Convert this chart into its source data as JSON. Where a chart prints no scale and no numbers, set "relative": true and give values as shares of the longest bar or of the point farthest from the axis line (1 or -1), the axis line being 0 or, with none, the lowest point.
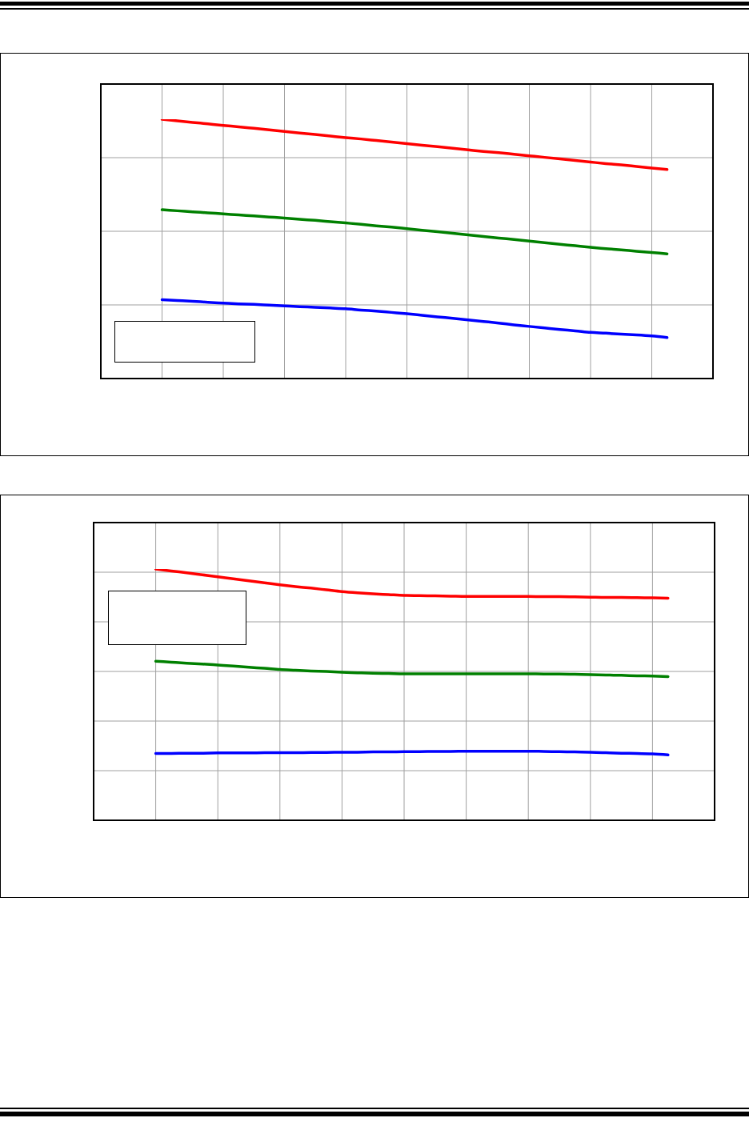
{
  "chart_data": [
    {
      "type": "line",
      "relative": true,
      "grid": true,
      "categories": [
        null,
        null,
        null,
        null,
        null,
        null,
        null,
        null,
        null,
        null,
        null,
        null,
        null,
        null,
        null,
        null,
        null,
        null,
        null,
        null,
        null,
        null,
        null,
        null,
        null,
        null,
        null,
        null,
        null,
        null,
        null,
        null,
        null,
        null,
        null,
        null,
        null,
        null,
        null,
        null,
        null
      ],
      "series": [
        {
          "color": "#ff0000",
          "values": [
            null,
            null,
            null,
            null,
            1,
            0.994,
            0.988,
            0.982,
            0.976,
            0.971,
            0.965,
            0.959,
            0.953,
            0.947,
            0.941,
            0.935,
            0.929,
            0.924,
            0.918,
            0.912,
            0.906,
            0.9,
            0.894,
            0.888,
            0.882,
            0.876,
            0.871,
            0.865,
            0.859,
            0.853,
            0.847,
            0.841,
            0.835,
            0.829,
            0.824,
            0.818,
            0.812,
            0.806,
            null,
            null,
            null
          ]
        },
        {
          "color": "#008000",
          "values": [
            null,
            null,
            null,
            null,
            0.651,
            0.647,
            0.643,
            0.639,
            0.635,
            0.631,
            0.627,
            0.623,
            0.619,
            0.614,
            0.61,
            0.605,
            0.6,
            0.595,
            0.589,
            0.584,
            0.578,
            0.572,
            0.566,
            0.56,
            0.554,
            0.548,
            0.542,
            0.536,
            0.53,
            0.524,
            0.518,
            0.512,
            0.506,
            0.501,
            0.496,
            0.491,
            0.486,
            0.481,
            null,
            null,
            null
          ]
        },
        {
          "color": "#0000ff",
          "values": [
            null,
            null,
            null,
            null,
            0.304,
            0.301,
            0.298,
            0.294,
            0.291,
            0.288,
            0.286,
            0.283,
            0.28,
            0.277,
            0.275,
            0.272,
            0.269,
            0.264,
            0.26,
            0.255,
            0.25,
            0.244,
            0.238,
            0.232,
            0.226,
            0.22,
            0.214,
            0.207,
            0.201,
            0.195,
            0.189,
            0.184,
            0.178,
            0.175,
            0.171,
            0.168,
            0.164,
            0.158,
            null,
            null,
            null
          ]
        }
      ]
    },
    {
      "type": "line",
      "relative": true,
      "grid": true,
      "categories": [
        null,
        null,
        null,
        null,
        null,
        null,
        null,
        null,
        null,
        null,
        null,
        null,
        null,
        null,
        null,
        null,
        null,
        null,
        null,
        null,
        null,
        null,
        null,
        null,
        null,
        null,
        null,
        null,
        null,
        null,
        null,
        null,
        null,
        null,
        null,
        null,
        null,
        null,
        null,
        null,
        null
      ],
      "series": [
        {
          "color": "#ff0000",
          "values": [
            null,
            null,
            null,
            null,
            1,
            0.992,
            0.985,
            0.977,
            0.969,
            0.961,
            0.953,
            0.945,
            0.937,
            0.93,
            0.924,
            0.917,
            0.91,
            0.905,
            0.901,
            0.898,
            0.895,
            0.894,
            0.893,
            0.892,
            0.891,
            0.891,
            0.891,
            0.891,
            0.891,
            0.89,
            0.89,
            0.889,
            0.888,
            0.887,
            0.887,
            0.886,
            0.885,
            0.884,
            null,
            null,
            null
          ]
        },
        {
          "color": "#008000",
          "values": [
            null,
            null,
            null,
            null,
            0.633,
            0.629,
            0.625,
            0.622,
            0.618,
            0.614,
            0.609,
            0.605,
            0.6,
            0.597,
            0.594,
            0.592,
            0.589,
            0.587,
            0.585,
            0.584,
            0.583,
            0.583,
            0.583,
            0.583,
            0.583,
            0.583,
            0.583,
            0.583,
            0.583,
            0.582,
            0.582,
            0.581,
            0.58,
            0.578,
            0.577,
            0.575,
            0.574,
            0.572,
            null,
            null,
            null
          ]
        },
        {
          "color": "#0000ff",
          "values": [
            null,
            null,
            null,
            null,
            0.266,
            0.266,
            0.267,
            0.267,
            0.268,
            0.268,
            0.268,
            0.269,
            0.269,
            0.269,
            0.27,
            0.27,
            0.271,
            0.271,
            0.272,
            0.272,
            0.273,
            0.273,
            0.274,
            0.274,
            0.275,
            0.275,
            0.275,
            0.275,
            0.275,
            0.274,
            0.273,
            0.272,
            0.271,
            0.269,
            0.267,
            0.266,
            0.264,
            0.26,
            null,
            null,
            null
          ]
        }
      ]
    }
  ]
}
